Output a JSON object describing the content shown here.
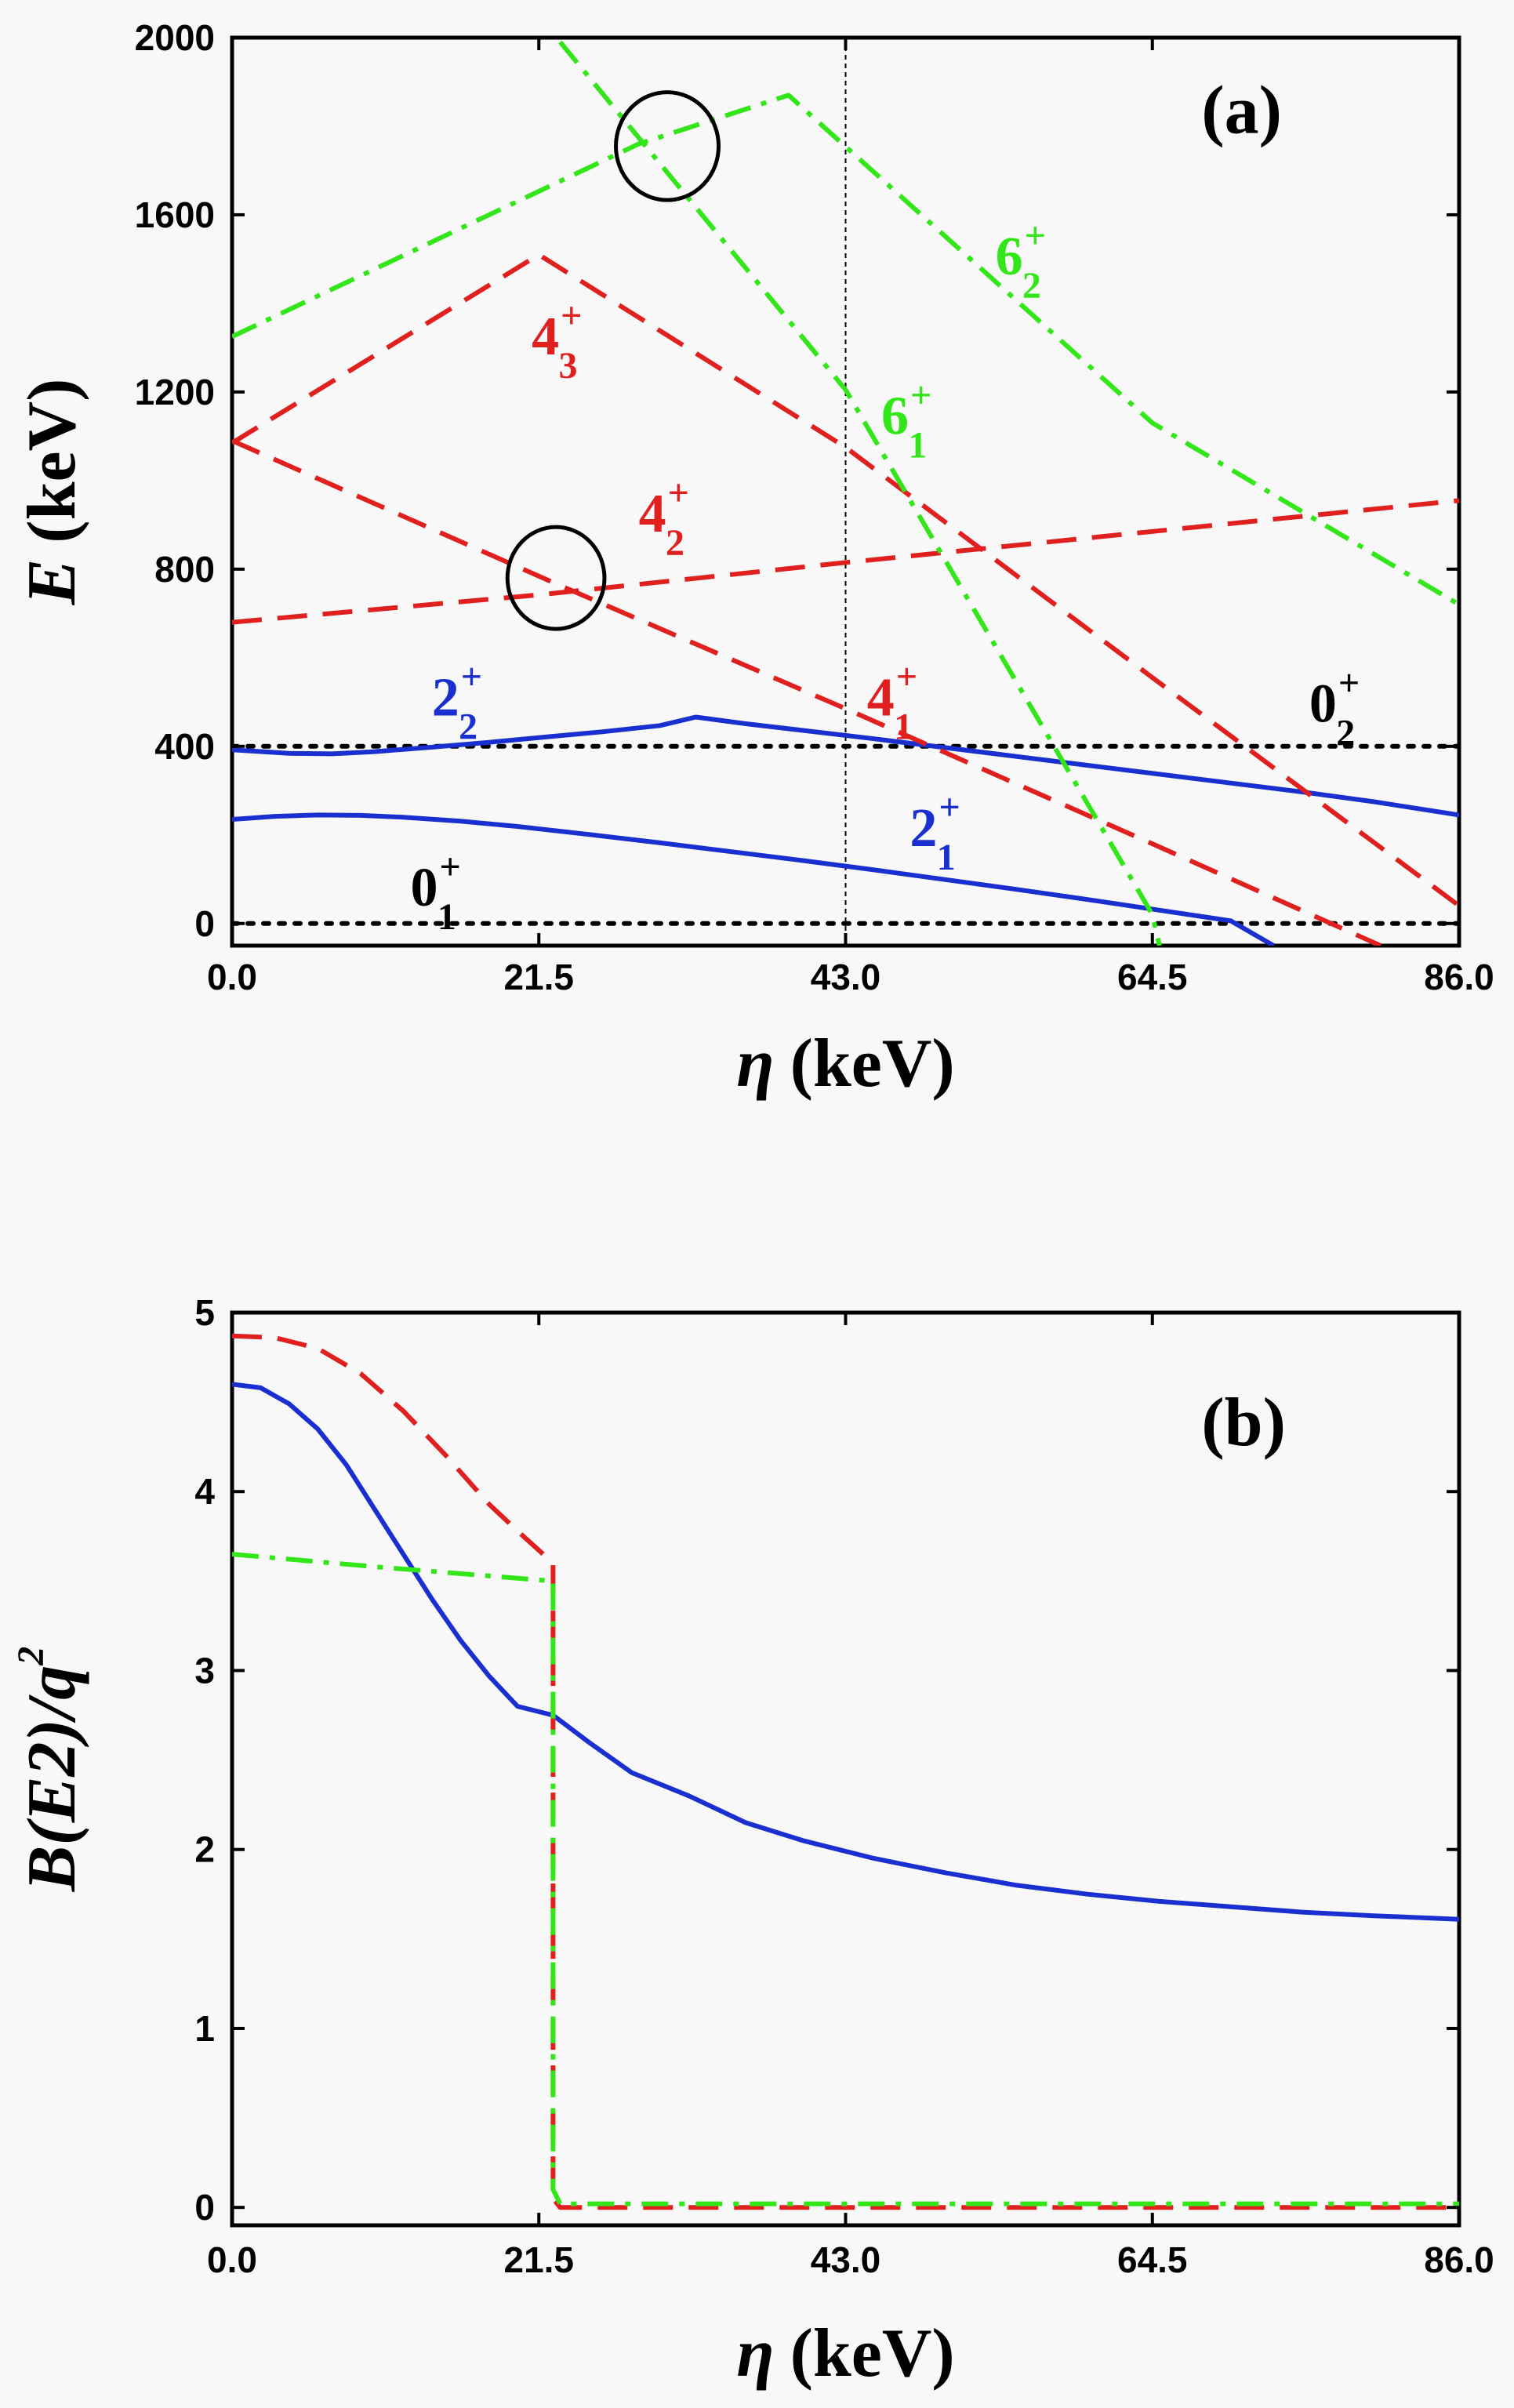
{
  "chart_data": [
    {
      "panel": "a",
      "type": "line",
      "panel_tag": "(a)",
      "xlabel_symbol": "η",
      "xlabel_unit": "(keV)",
      "ylabel_symbol": "E",
      "ylabel_unit": "(keV)",
      "xlim": [
        0,
        86
      ],
      "ylim": [
        -50,
        2000
      ],
      "xticks": [
        "0.0",
        "21.5",
        "43.0",
        "64.5",
        "86.0"
      ],
      "xtick_values": [
        0,
        21.5,
        43,
        64.5,
        86
      ],
      "yticks": [
        "0",
        "400",
        "800",
        "1200",
        "1600",
        "2000"
      ],
      "ytick_values": [
        0,
        400,
        800,
        1200,
        1600,
        2000
      ],
      "vline_x": 43,
      "colors": {
        "blue": "#1a2fd0",
        "red": "#e0201e",
        "green": "#33e61a",
        "black": "#000000"
      },
      "series": [
        {
          "style": "dotted",
          "color": "black",
          "x": [
            0,
            86
          ],
          "y": [
            0,
            0
          ]
        },
        {
          "style": "dotted",
          "color": "black",
          "x": [
            0,
            86
          ],
          "y": [
            400,
            400
          ]
        },
        {
          "style": "solid",
          "color": "blue",
          "x": [
            0,
            3,
            6,
            9,
            12,
            16,
            20,
            25,
            30,
            35,
            40,
            45,
            50,
            55,
            60,
            65,
            70,
            73
          ],
          "y": [
            235,
            242,
            245,
            244,
            240,
            231,
            219,
            201,
            182,
            162,
            142,
            121,
            99,
            77,
            54,
            30,
            6,
            -50
          ]
        },
        {
          "style": "solid",
          "color": "blue",
          "x": [
            0,
            4,
            7,
            10,
            14,
            18,
            22,
            26,
            30,
            32.5,
            36,
            40,
            45,
            50,
            55,
            60,
            65,
            70,
            75,
            80,
            86
          ],
          "y": [
            392,
            384,
            383,
            388,
            398,
            409,
            421,
            433,
            447,
            466,
            451,
            436,
            417,
            397,
            377,
            357,
            337,
            317,
            297,
            275,
            245
          ]
        },
        {
          "style": "dashed",
          "color": "red",
          "x": [
            0,
            21.5,
            43,
            64.5,
            86
          ],
          "y": [
            680,
            742,
            815,
            885,
            955
          ]
        },
        {
          "style": "dashed",
          "color": "red",
          "x": [
            0,
            22.5,
            43,
            64.5,
            80.5
          ],
          "y": [
            1090,
            770,
            485,
            180,
            -50
          ]
        },
        {
          "style": "dashed",
          "color": "red",
          "x": [
            0,
            21.5,
            43,
            64.5,
            86
          ],
          "y": [
            1085,
            1510,
            1075,
            555,
            40
          ]
        },
        {
          "style": "dashdot",
          "color": "green",
          "x": [
            0,
            28.5,
            39,
            64.5,
            86
          ],
          "y": [
            1325,
            1760,
            1870,
            1130,
            720
          ]
        },
        {
          "style": "dashdot",
          "color": "green",
          "x": [
            23,
            43,
            64.5,
            65
          ],
          "y": [
            1990,
            1205,
            20,
            -50
          ]
        }
      ],
      "annotations": [
        {
          "base": "0",
          "sub": "1",
          "sup": "+",
          "color": "black",
          "x": 12.5,
          "y": 40
        },
        {
          "base": "0",
          "sub": "2",
          "sup": "+",
          "color": "black",
          "x": 75.5,
          "y": 455
        },
        {
          "base": "2",
          "sub": "1",
          "sup": "+",
          "color": "blue",
          "x": 47.5,
          "y": 175
        },
        {
          "base": "2",
          "sub": "2",
          "sup": "+",
          "color": "blue",
          "x": 14,
          "y": 470
        },
        {
          "base": "4",
          "sub": "1",
          "sup": "+",
          "color": "red",
          "x": 44.5,
          "y": 470
        },
        {
          "base": "4",
          "sub": "2",
          "sup": "+",
          "color": "red",
          "x": 28.5,
          "y": 885
        },
        {
          "base": "4",
          "sub": "3",
          "sup": "+",
          "color": "red",
          "x": 21,
          "y": 1285
        },
        {
          "base": "6",
          "sub": "1",
          "sup": "+",
          "color": "green",
          "x": 45.5,
          "y": 1105
        },
        {
          "base": "6",
          "sub": "2",
          "sup": "+",
          "color": "green",
          "x": 53.5,
          "y": 1465
        }
      ],
      "circles": [
        {
          "cx": 30.5,
          "cy": 1755,
          "r_keV": 3.6
        },
        {
          "cx": 22.7,
          "cy": 780,
          "r_keV": 3.4
        }
      ]
    },
    {
      "panel": "b",
      "type": "line",
      "panel_tag": "(b)",
      "xlabel_symbol": "η",
      "xlabel_unit": "(keV)",
      "ylabel_text": "B(E2)/q",
      "ylabel_sup": "2",
      "xlim": [
        0,
        86
      ],
      "ylim": [
        -0.1,
        5
      ],
      "xticks": [
        "0.0",
        "21.5",
        "43.0",
        "64.5",
        "86.0"
      ],
      "xtick_values": [
        0,
        21.5,
        43,
        64.5,
        86
      ],
      "yticks": [
        "0",
        "1",
        "2",
        "3",
        "4",
        "5"
      ],
      "ytick_values": [
        0,
        1,
        2,
        3,
        4,
        5
      ],
      "colors": {
        "blue": "#1a2fd0",
        "red": "#e0201e",
        "green": "#33e61a"
      },
      "series": [
        {
          "style": "solid",
          "color": "blue",
          "x": [
            0,
            2,
            4,
            6,
            8,
            10,
            12,
            14,
            16,
            18,
            20,
            22.5,
            25,
            28,
            32,
            36,
            40,
            45,
            50,
            55,
            60,
            65,
            70,
            75,
            80,
            86
          ],
          "y": [
            4.6,
            4.58,
            4.49,
            4.35,
            4.15,
            3.9,
            3.65,
            3.4,
            3.17,
            2.97,
            2.8,
            2.75,
            2.6,
            2.43,
            2.3,
            2.15,
            2.05,
            1.95,
            1.87,
            1.8,
            1.75,
            1.71,
            1.68,
            1.65,
            1.63,
            1.61
          ]
        },
        {
          "style": "dashed",
          "color": "red",
          "x": [
            0,
            3,
            6,
            9,
            12,
            15,
            18,
            20,
            22.5,
            22.5,
            23,
            30,
            43,
            64.5,
            86
          ],
          "y": [
            4.87,
            4.86,
            4.8,
            4.66,
            4.45,
            4.2,
            3.93,
            3.78,
            3.6,
            0.05,
            0,
            0,
            0,
            0,
            0
          ]
        },
        {
          "style": "dashdot",
          "color": "green",
          "x": [
            0,
            10,
            22.5,
            22.5,
            23,
            30,
            43,
            64.5,
            86
          ],
          "y": [
            3.65,
            3.58,
            3.5,
            0.1,
            0.02,
            0.02,
            0.02,
            0.02,
            0.02
          ]
        }
      ]
    }
  ]
}
